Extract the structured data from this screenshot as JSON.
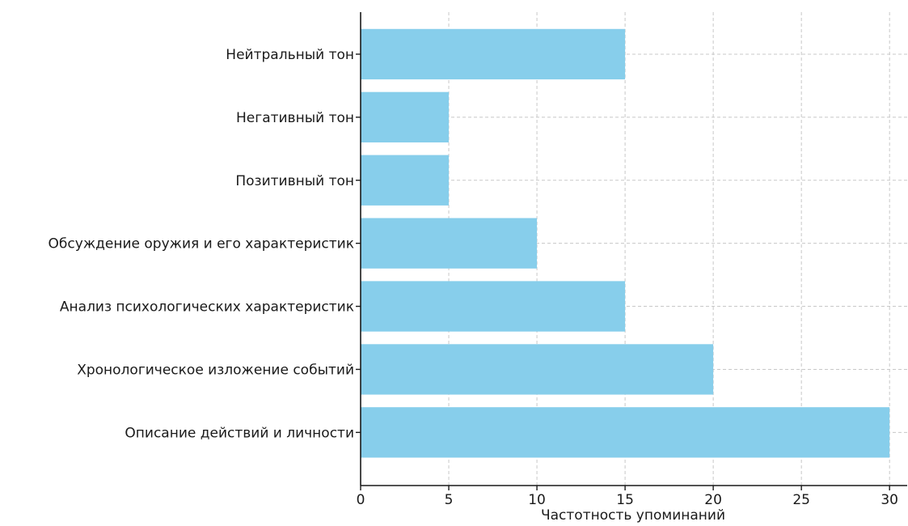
{
  "chart_data": {
    "type": "bar",
    "orientation": "horizontal",
    "categories": [
      "Нейтральный тон",
      "Негативный тон",
      "Позитивный тон",
      "Обсуждение оружия и его характеристик",
      "Анализ психологических характеристик",
      "Хронологическое изложение событий",
      "Описание действий и личности"
    ],
    "values": [
      15,
      5,
      5,
      10,
      15,
      20,
      30
    ],
    "xlabel": "Частотность упоминаний",
    "ylabel": "",
    "title": "",
    "xlim": [
      0,
      31
    ],
    "xticks": [
      0,
      5,
      10,
      15,
      20,
      25,
      30
    ],
    "grid": true,
    "bar_color": "#87ceeb"
  }
}
